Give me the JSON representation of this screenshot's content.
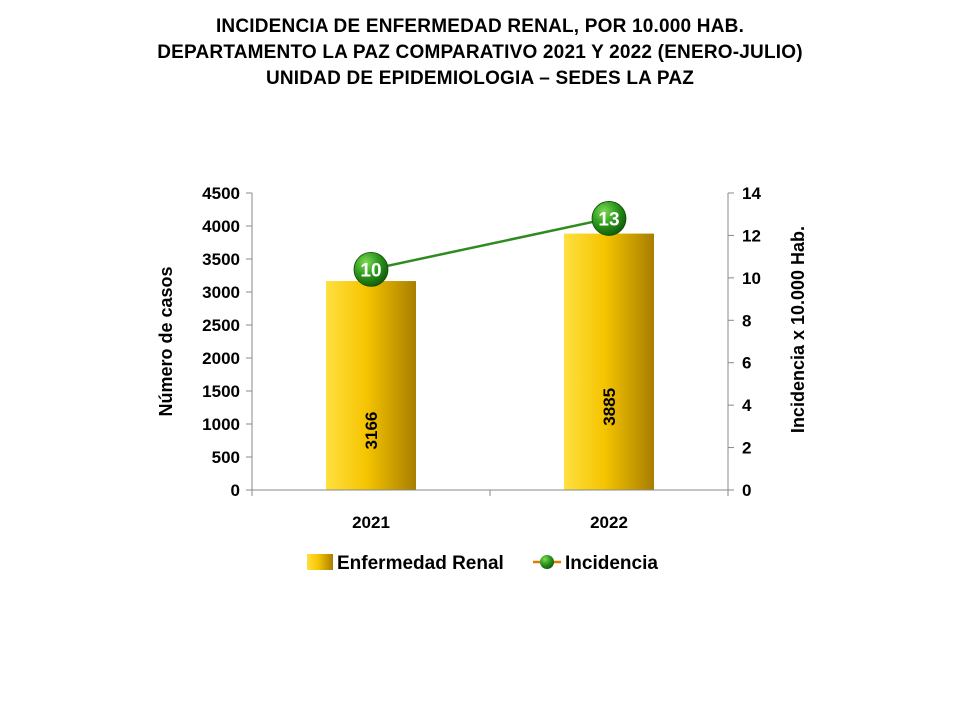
{
  "title_lines": [
    "INCIDENCIA  DE  ENFERMEDAD  RENAL,  POR  10.000  HAB.",
    "DEPARTAMENTO  LA  PAZ  COMPARATIVO  2021  Y  2022  (ENERO-JULIO)",
    "UNIDAD DE EPIDEMIOLOGIA – SEDES LA PAZ"
  ],
  "chart_data": {
    "type": "bar",
    "categories": [
      "2021",
      "2022"
    ],
    "series": [
      {
        "name": "Enfermedad Renal",
        "type": "bar",
        "axis": "left",
        "values": [
          3166,
          3885
        ],
        "data_labels": [
          "3166",
          "3885"
        ],
        "color": "#F0B800"
      },
      {
        "name": "Incidencia",
        "type": "line",
        "axis": "right",
        "values": [
          10.4,
          12.8
        ],
        "data_labels": [
          "10",
          "13"
        ],
        "color": "#2E8B1E"
      }
    ],
    "ylabel": "Número de casos",
    "ylabel_right": "Incidencia x 10.000 Hab.",
    "ylim": [
      0,
      4500
    ],
    "yticks": [
      "0",
      "500",
      "1000",
      "1500",
      "2000",
      "2500",
      "3000",
      "3500",
      "4000",
      "4500"
    ],
    "ylim_right": [
      0,
      14
    ],
    "yticks_right": [
      "0",
      "2",
      "4",
      "6",
      "8",
      "10",
      "12",
      "14"
    ],
    "grid": false,
    "legend_position": "bottom"
  }
}
